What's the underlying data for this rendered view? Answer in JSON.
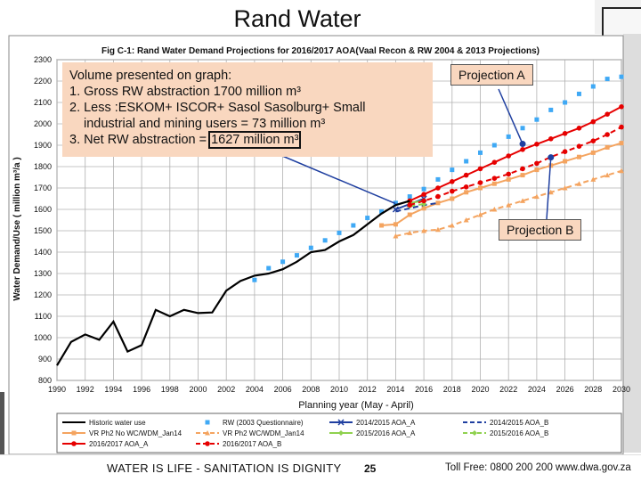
{
  "slide": {
    "title": "Rand Water",
    "footer_slogan": "WATER IS LIFE - SANITATION IS DIGNITY",
    "page_number": "25",
    "toll_free": "Toll Free: 0800 200 200",
    "website": "www.dwa.gov.za"
  },
  "annotation": {
    "line1": "Volume presented on graph:",
    "line2": "1. Gross RW abstraction  1700 million m³",
    "line3": "2. Less :ESKOM+ ISCOR+ Sasol Sasolburg+ Small",
    "line4": "industrial and mining users = 73 million m³",
    "line5_prefix": "3. Net RW abstraction  = ",
    "line5_value": "1627 million m³",
    "projection_a": "Projection A",
    "projection_b": "Projection B"
  },
  "chart_data": {
    "type": "line",
    "title": "Fig C-1: Rand Water Demand Projections for 2016/2017 AOA(Vaal Recon & RW 2004 & 2013 Projections)",
    "xlabel": "Planning year (May - April)",
    "ylabel": "Water Demand/Use  ( million m³/a )",
    "xlim": [
      1990,
      2030
    ],
    "ylim": [
      800,
      2300
    ],
    "x_ticks": [
      1990,
      1992,
      1994,
      1996,
      1998,
      2000,
      2002,
      2004,
      2006,
      2008,
      2010,
      2012,
      2014,
      2016,
      2018,
      2020,
      2022,
      2024,
      2026,
      2028,
      2030
    ],
    "y_ticks": [
      800,
      900,
      1000,
      1100,
      1200,
      1300,
      1400,
      1500,
      1600,
      1700,
      1800,
      1900,
      2000,
      2100,
      2200,
      2300
    ],
    "grid": true,
    "legend_position": "bottom",
    "series": [
      {
        "name": "Historic water use",
        "color": "#000000",
        "style": "solid",
        "marker": "none",
        "x": [
          1990,
          1991,
          1992,
          1993,
          1994,
          1995,
          1996,
          1997,
          1998,
          1999,
          2000,
          2001,
          2002,
          2003,
          2004,
          2005,
          2006,
          2007,
          2008,
          2009,
          2010,
          2011,
          2012,
          2013,
          2014,
          2015
        ],
        "y": [
          870,
          980,
          1015,
          990,
          1075,
          935,
          965,
          1130,
          1100,
          1130,
          1115,
          1118,
          1220,
          1265,
          1290,
          1300,
          1320,
          1355,
          1400,
          1410,
          1450,
          1480,
          1530,
          1580,
          1620,
          1640
        ]
      },
      {
        "name": "RW (2003 Questionnaire)",
        "color": "#3fa9f5",
        "style": "none",
        "marker": "square",
        "x": [
          2004,
          2005,
          2006,
          2007,
          2008,
          2009,
          2010,
          2011,
          2012,
          2013,
          2014,
          2015,
          2016,
          2017,
          2018,
          2019,
          2020,
          2021,
          2022,
          2023,
          2024,
          2025,
          2026,
          2027,
          2028,
          2029,
          2030
        ],
        "y": [
          1270,
          1325,
          1355,
          1385,
          1420,
          1455,
          1490,
          1525,
          1560,
          1590,
          1630,
          1660,
          1695,
          1740,
          1785,
          1825,
          1865,
          1900,
          1940,
          1980,
          2020,
          2065,
          2100,
          2140,
          2175,
          2210,
          2220
        ]
      },
      {
        "name": "2014/2015 AOA_A",
        "color": "#1f3fa0",
        "style": "solid",
        "marker": "x",
        "x": [
          2014,
          2015,
          2016
        ],
        "y": [
          1600,
          1625,
          1650
        ]
      },
      {
        "name": "2014/2015 AOA_B",
        "color": "#1f3fa0",
        "style": "dashed",
        "marker": "none",
        "x": [
          2014,
          2015,
          2016,
          2017
        ],
        "y": [
          1590,
          1605,
          1620,
          1630
        ]
      },
      {
        "name": "VR Ph2 No WC/WDM_Jan14",
        "color": "#f4a460",
        "style": "solid",
        "marker": "square",
        "x": [
          2013,
          2014,
          2015,
          2016,
          2017,
          2018,
          2019,
          2020,
          2021,
          2022,
          2023,
          2024,
          2025,
          2026,
          2027,
          2028,
          2029,
          2030
        ],
        "y": [
          1525,
          1530,
          1575,
          1605,
          1630,
          1650,
          1680,
          1700,
          1720,
          1740,
          1760,
          1785,
          1805,
          1825,
          1845,
          1865,
          1890,
          1910
        ]
      },
      {
        "name": "VR Ph2 WC/WDM_Jan14",
        "color": "#f4a460",
        "style": "dashed",
        "marker": "triangle",
        "x": [
          2014,
          2015,
          2016,
          2017,
          2018,
          2019,
          2020,
          2021,
          2022,
          2023,
          2024,
          2025,
          2026,
          2027,
          2028,
          2029,
          2030
        ],
        "y": [
          1475,
          1490,
          1500,
          1505,
          1525,
          1550,
          1575,
          1600,
          1620,
          1640,
          1660,
          1680,
          1700,
          1720,
          1740,
          1760,
          1780
        ]
      },
      {
        "name": "2015/2016 AOA_A",
        "color": "#8fd14f",
        "style": "solid",
        "marker": "diamond",
        "x": [
          2015,
          2016
        ],
        "y": [
          1630,
          1640
        ]
      },
      {
        "name": "2015/2016 AOA_B",
        "color": "#8fd14f",
        "style": "dashed",
        "marker": "diamond",
        "x": [
          2015,
          2016
        ],
        "y": [
          1615,
          1625
        ]
      },
      {
        "name": "2016/2017 AOA_A",
        "color": "#e60000",
        "style": "solid",
        "marker": "circle",
        "x": [
          2015,
          2016,
          2017,
          2018,
          2019,
          2020,
          2021,
          2022,
          2023,
          2024,
          2025,
          2026,
          2027,
          2028,
          2029,
          2030
        ],
        "y": [
          1640,
          1670,
          1700,
          1730,
          1760,
          1790,
          1820,
          1850,
          1880,
          1905,
          1930,
          1955,
          1980,
          2010,
          2045,
          2080
        ]
      },
      {
        "name": "2016/2017 AOA_B",
        "color": "#e60000",
        "style": "dashed",
        "marker": "circle",
        "x": [
          2015,
          2016,
          2017,
          2018,
          2019,
          2020,
          2021,
          2022,
          2023,
          2024,
          2025,
          2026,
          2027,
          2028,
          2029,
          2030
        ],
        "y": [
          1620,
          1640,
          1660,
          1685,
          1705,
          1725,
          1745,
          1765,
          1790,
          1815,
          1845,
          1870,
          1895,
          1920,
          1950,
          1985
        ]
      }
    ]
  }
}
